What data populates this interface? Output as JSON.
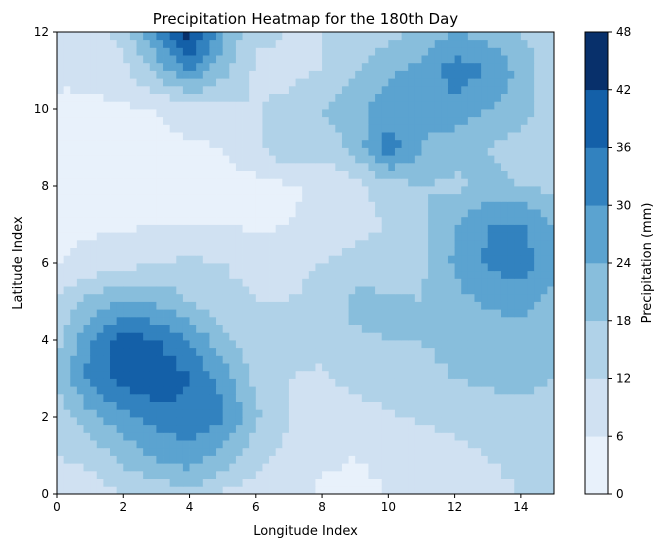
{
  "chart_data": {
    "type": "heatmap",
    "title": "Precipitation Heatmap for the 180th Day",
    "xlabel": "Longitude Index",
    "ylabel": "Latitude Index",
    "xlim": [
      0,
      15
    ],
    "ylim": [
      0,
      12
    ],
    "x_ticks": [
      "0",
      "2",
      "4",
      "6",
      "8",
      "10",
      "12",
      "14"
    ],
    "y_ticks": [
      "0",
      "2",
      "4",
      "6",
      "8",
      "10",
      "12"
    ],
    "colorbar": {
      "label": "Precipitation (mm)",
      "levels": [
        0,
        6,
        12,
        18,
        24,
        30,
        36,
        42,
        48
      ],
      "tick_labels": [
        "0",
        "6",
        "12",
        "18",
        "24",
        "30",
        "36",
        "42",
        "48"
      ],
      "colors": [
        "#e8f1fb",
        "#d0e1f2",
        "#b0d2e8",
        "#88bedc",
        "#5ba3d0",
        "#3282bf",
        "#1460a8",
        "#08306b"
      ]
    },
    "x": [
      0,
      1,
      2,
      3,
      4,
      5,
      6,
      7,
      8,
      9,
      10,
      11,
      12,
      13,
      14,
      15
    ],
    "y": [
      0,
      1,
      2,
      3,
      4,
      5,
      6,
      7,
      8,
      9,
      10,
      11,
      12
    ],
    "z": [
      [
        7,
        9,
        12,
        14,
        16,
        11,
        9,
        8,
        5,
        5,
        6,
        7,
        8,
        10,
        12,
        12
      ],
      [
        12,
        14,
        20,
        25,
        28,
        22,
        14,
        10,
        7,
        6,
        7,
        8,
        10,
        12,
        14,
        13
      ],
      [
        15,
        22,
        28,
        32,
        34,
        31,
        19,
        12,
        8,
        9,
        11,
        13,
        14,
        15,
        16,
        15
      ],
      [
        18,
        32,
        38,
        42,
        36,
        28,
        16,
        12,
        11,
        14,
        16,
        17,
        18,
        19,
        20,
        18
      ],
      [
        16,
        30,
        40,
        36,
        30,
        20,
        14,
        13,
        14,
        17,
        18,
        18,
        19,
        20,
        22,
        20
      ],
      [
        13,
        20,
        24,
        23,
        18,
        14,
        12,
        12,
        14,
        20,
        19,
        18,
        22,
        25,
        26,
        22
      ],
      [
        6,
        8,
        10,
        12,
        13,
        12,
        10,
        10,
        12,
        14,
        15,
        17,
        25,
        31,
        33,
        26
      ],
      [
        4,
        5,
        5,
        6,
        6,
        6,
        5,
        6,
        8,
        10,
        12,
        17,
        24,
        30,
        31,
        24
      ],
      [
        3,
        3,
        4,
        4,
        4,
        4,
        4,
        5,
        7,
        10,
        15,
        18,
        17,
        19,
        18,
        16
      ],
      [
        5,
        4,
        4,
        5,
        5,
        6,
        10,
        18,
        14,
        20,
        34,
        24,
        20,
        18,
        16,
        14
      ],
      [
        6,
        5,
        5,
        6,
        9,
        11,
        12,
        13,
        18,
        22,
        27,
        25,
        28,
        24,
        20,
        15
      ],
      [
        6,
        7,
        10,
        20,
        30,
        20,
        11,
        11,
        12,
        17,
        23,
        26,
        33,
        30,
        22,
        14
      ],
      [
        8,
        10,
        14,
        30,
        45,
        25,
        13,
        12,
        12,
        14,
        16,
        20,
        24,
        22,
        18,
        13
      ]
    ]
  }
}
